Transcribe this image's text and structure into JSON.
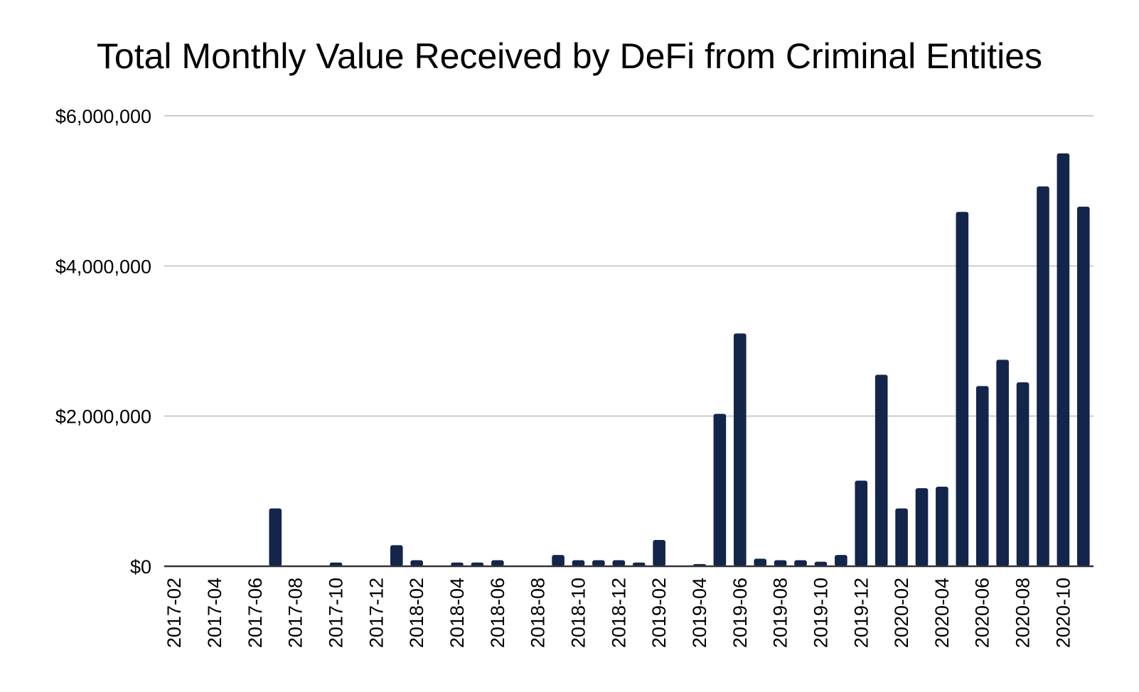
{
  "chart_data": {
    "type": "bar",
    "title": "Total Monthly Value Received by DeFi from Criminal Entities",
    "xlabel": "",
    "ylabel": "",
    "ylim": [
      0,
      6000000
    ],
    "yticks": [
      {
        "value": 0,
        "label": "$0"
      },
      {
        "value": 2000000,
        "label": "$2,000,000"
      },
      {
        "value": 4000000,
        "label": "$4,000,000"
      },
      {
        "value": 6000000,
        "label": "$6,000,000"
      }
    ],
    "grid": true,
    "legend": "none",
    "bar_color": "#13254b",
    "categories": [
      "2017-02",
      "2017-03",
      "2017-04",
      "2017-05",
      "2017-06",
      "2017-07",
      "2017-08",
      "2017-09",
      "2017-10",
      "2017-11",
      "2017-12",
      "2018-01",
      "2018-02",
      "2018-03",
      "2018-04",
      "2018-05",
      "2018-06",
      "2018-07",
      "2018-08",
      "2018-09",
      "2018-10",
      "2018-11",
      "2018-12",
      "2019-01",
      "2019-02",
      "2019-03",
      "2019-04",
      "2019-05",
      "2019-06",
      "2019-07",
      "2019-08",
      "2019-09",
      "2019-10",
      "2019-11",
      "2019-12",
      "2020-01",
      "2020-02",
      "2020-03",
      "2020-04",
      "2020-05",
      "2020-06",
      "2020-07",
      "2020-08",
      "2020-09",
      "2020-10",
      "2020-11"
    ],
    "x_tick_labels": [
      "2017-02",
      "2017-04",
      "2017-06",
      "2017-08",
      "2017-10",
      "2017-12",
      "2018-02",
      "2018-04",
      "2018-06",
      "2018-08",
      "2018-10",
      "2018-12",
      "2019-02",
      "2019-04",
      "2019-06",
      "2019-08",
      "2019-10",
      "2019-12",
      "2020-02",
      "2020-04",
      "2020-06",
      "2020-08",
      "2020-10"
    ],
    "values": [
      0,
      0,
      0,
      0,
      0,
      770000,
      0,
      0,
      50000,
      0,
      0,
      280000,
      80000,
      0,
      50000,
      50000,
      80000,
      0,
      0,
      150000,
      80000,
      80000,
      80000,
      50000,
      350000,
      0,
      30000,
      2030000,
      3100000,
      100000,
      80000,
      80000,
      60000,
      150000,
      1140000,
      2550000,
      770000,
      1040000,
      1060000,
      4720000,
      2400000,
      2750000,
      2450000,
      5060000,
      5500000,
      4790000
    ]
  }
}
